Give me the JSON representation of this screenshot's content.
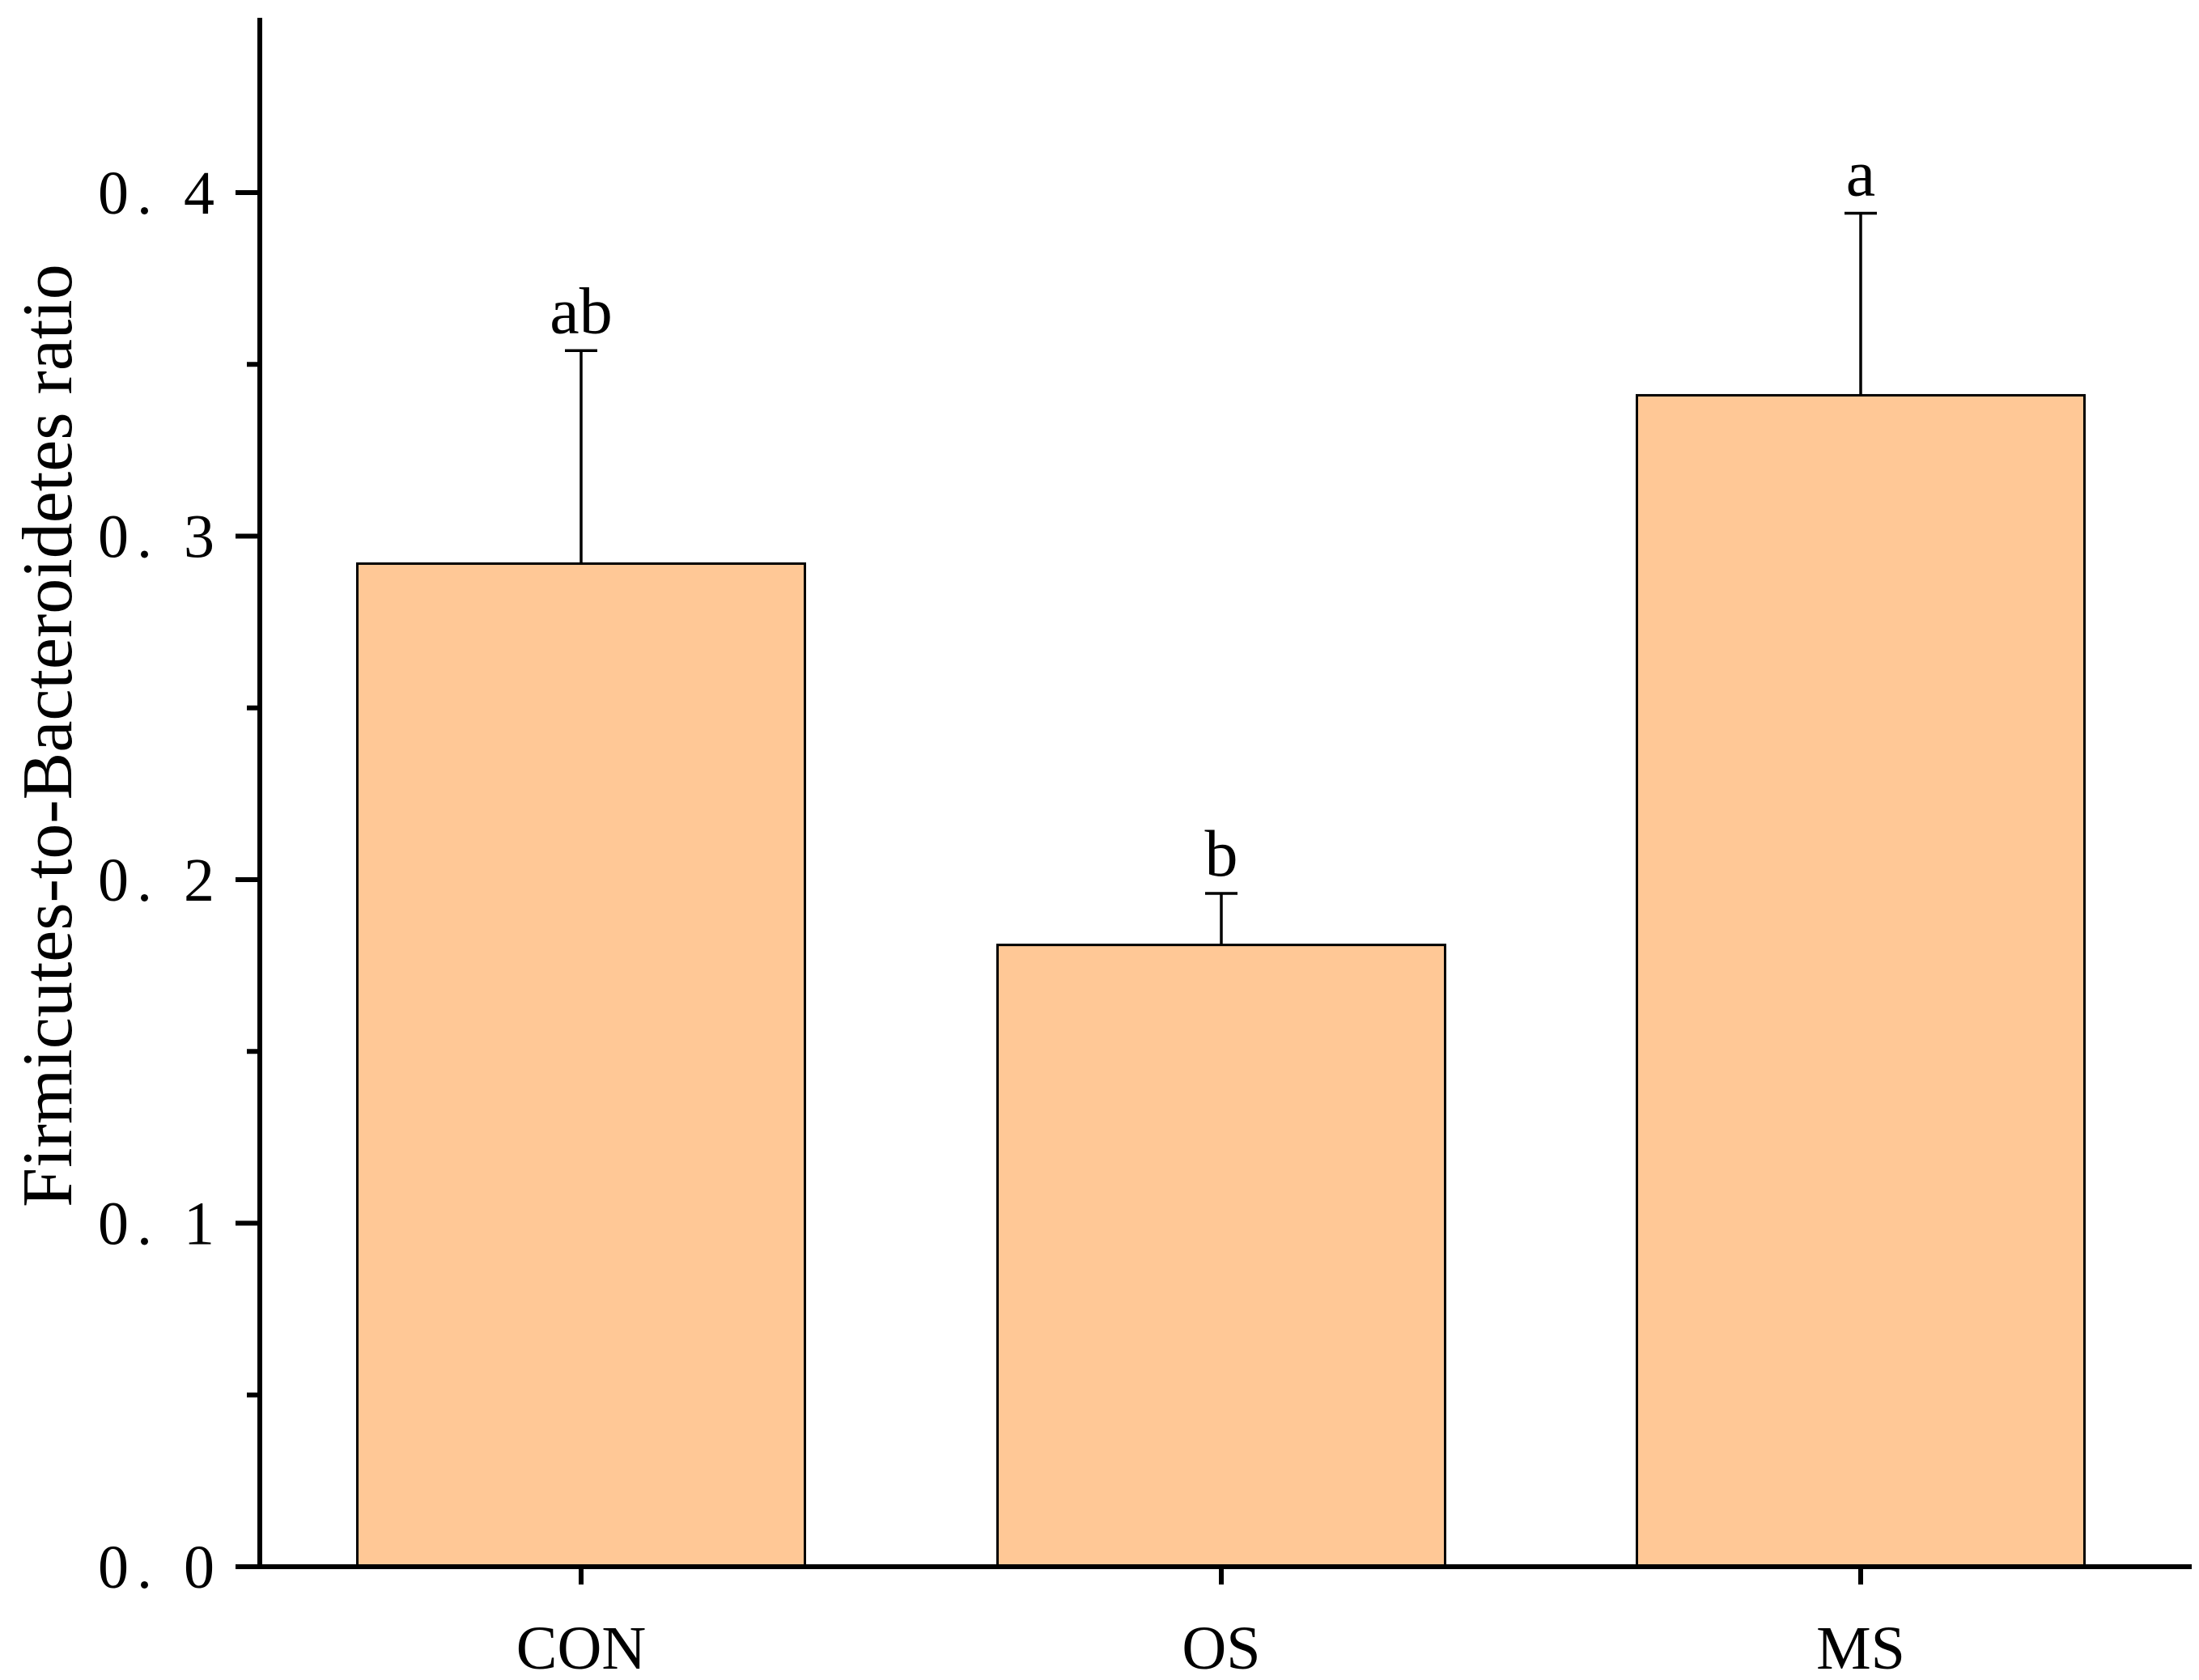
{
  "chart_data": {
    "type": "bar",
    "categories": [
      "CON",
      "OS",
      "MS"
    ],
    "values": [
      0.292,
      0.181,
      0.341
    ],
    "error_upper": [
      0.354,
      0.196,
      0.394
    ],
    "significance_labels": [
      "ab",
      "b",
      "a"
    ],
    "ylabel": "Firmicutes-to-Bacteroidetes ratio",
    "xlabel": "",
    "ylim": [
      0,
      0.45
    ],
    "yticks": [
      0.0,
      0.1,
      0.2,
      0.3,
      0.4
    ],
    "ytick_labels": [
      "0. 0",
      "0. 1",
      "0. 2",
      "0. 3",
      "0. 4"
    ],
    "yminor_ticks": [
      0.05,
      0.15,
      0.25,
      0.35
    ],
    "grid": false,
    "legend": "none",
    "bar_color": "#FFC896",
    "edge_color": "#000000"
  }
}
